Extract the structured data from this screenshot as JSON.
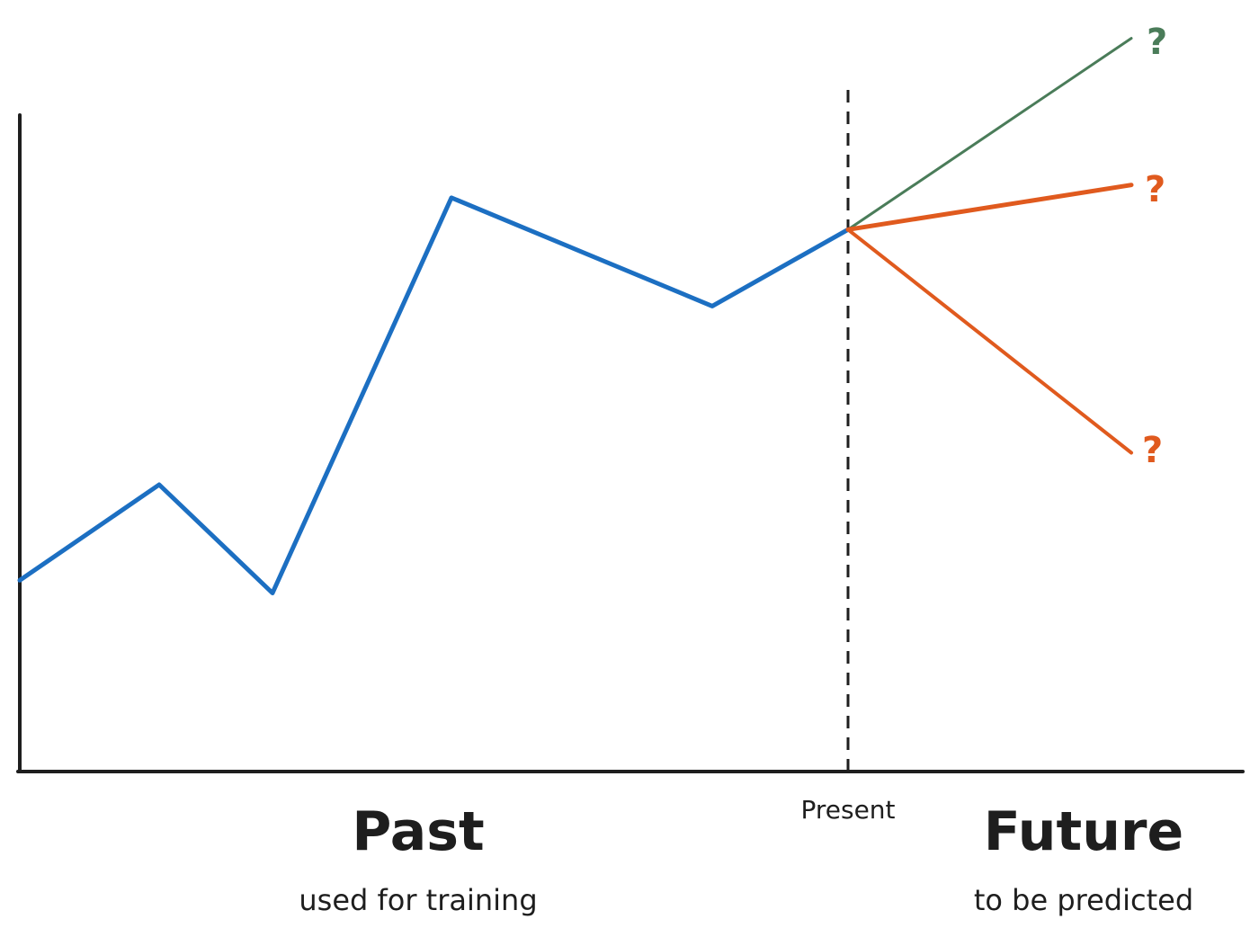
{
  "labels": {
    "present": "Present",
    "past_title": "Past",
    "past_subtitle": "used for training",
    "future_title": "Future",
    "future_subtitle": "to be predicted",
    "question_mark": "?"
  },
  "series": {
    "history": {
      "color": "#1c6fc2",
      "values": [
        3.0,
        4.5,
        2.8,
        9.0,
        7.3,
        8.5
      ]
    },
    "forecasts": [
      {
        "role": "upper",
        "color": "#4a7c59",
        "end_value": 11.5
      },
      {
        "role": "middle",
        "color": "#e05a1e",
        "end_value": 9.2
      },
      {
        "role": "lower",
        "color": "#e05a1e",
        "end_value": 5.0
      }
    ]
  },
  "colors": {
    "axes": "#1e1e1e",
    "present_marker": "#1e1e1e",
    "background": "#ffffff"
  }
}
